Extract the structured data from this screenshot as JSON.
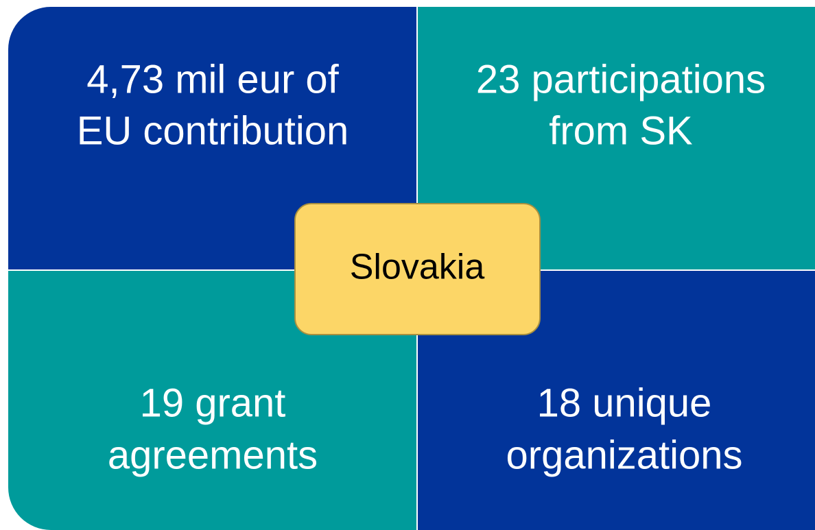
{
  "center": {
    "label": "Slovakia"
  },
  "quadrants": [
    {
      "lines": [
        "4,73 mil eur of",
        "EU contribution"
      ]
    },
    {
      "lines": [
        "23 participations",
        "from SK"
      ]
    },
    {
      "lines": [
        "19 grant",
        "agreements"
      ]
    },
    {
      "lines": [
        "18 unique",
        "organizations"
      ]
    }
  ]
}
